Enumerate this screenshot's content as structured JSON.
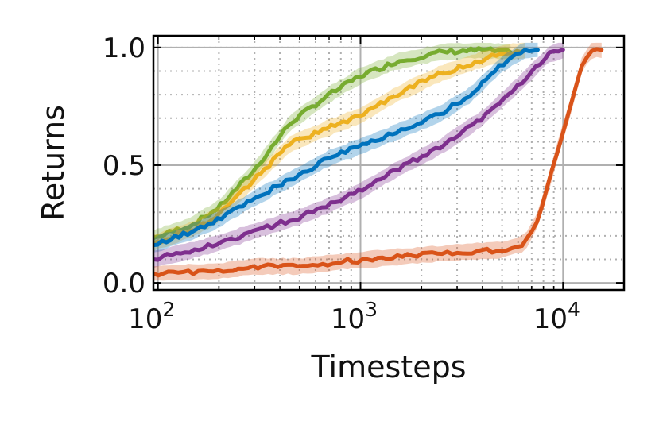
{
  "chart_data": {
    "type": "line",
    "title": "",
    "xlabel": "Timesteps",
    "ylabel": "Returns",
    "xscale": "log",
    "xlim": [
      95,
      20000
    ],
    "ylim": [
      -0.03,
      1.05
    ],
    "xticks": [
      {
        "value": 100,
        "base": "10",
        "exp": "2"
      },
      {
        "value": 1000,
        "base": "10",
        "exp": "3"
      },
      {
        "value": 10000,
        "base": "10",
        "exp": "4"
      }
    ],
    "yticks": [
      {
        "value": 0.0,
        "label": "0.0"
      },
      {
        "value": 0.5,
        "label": "0.5"
      },
      {
        "value": 1.0,
        "label": "1.0"
      }
    ],
    "grid": {
      "major": true,
      "minor": true,
      "minor_style": "dotted"
    },
    "legend": "none",
    "series": [
      {
        "color": "#77AC30",
        "values": [
          [
            95,
            0.19
          ],
          [
            150,
            0.25
          ],
          [
            200,
            0.32
          ],
          [
            300,
            0.48
          ],
          [
            450,
            0.68
          ],
          [
            700,
            0.8
          ],
          [
            1000,
            0.88
          ],
          [
            1500,
            0.94
          ],
          [
            2500,
            0.98
          ],
          [
            4000,
            0.99
          ],
          [
            5500,
            0.98
          ]
        ]
      },
      {
        "color": "#EDB120",
        "values": [
          [
            95,
            0.17
          ],
          [
            150,
            0.23
          ],
          [
            200,
            0.29
          ],
          [
            300,
            0.44
          ],
          [
            450,
            0.59
          ],
          [
            700,
            0.66
          ],
          [
            1000,
            0.71
          ],
          [
            1500,
            0.8
          ],
          [
            2500,
            0.89
          ],
          [
            4000,
            0.95
          ],
          [
            5500,
            0.98
          ],
          [
            6500,
            0.99
          ]
        ]
      },
      {
        "color": "#0072BD",
        "values": [
          [
            95,
            0.16
          ],
          [
            150,
            0.22
          ],
          [
            200,
            0.27
          ],
          [
            300,
            0.36
          ],
          [
            450,
            0.44
          ],
          [
            700,
            0.53
          ],
          [
            1000,
            0.58
          ],
          [
            1500,
            0.64
          ],
          [
            2500,
            0.72
          ],
          [
            3500,
            0.8
          ],
          [
            5000,
            0.93
          ],
          [
            6500,
            0.99
          ],
          [
            7500,
            0.99
          ]
        ]
      },
      {
        "color": "#7E2F8E",
        "values": [
          [
            95,
            0.1
          ],
          [
            150,
            0.14
          ],
          [
            200,
            0.17
          ],
          [
            300,
            0.22
          ],
          [
            500,
            0.28
          ],
          [
            700,
            0.33
          ],
          [
            1000,
            0.39
          ],
          [
            1500,
            0.48
          ],
          [
            2500,
            0.58
          ],
          [
            4000,
            0.7
          ],
          [
            6000,
            0.84
          ],
          [
            8500,
            0.97
          ],
          [
            10000,
            0.99
          ]
        ]
      },
      {
        "color": "#D95319",
        "values": [
          [
            95,
            0.04
          ],
          [
            200,
            0.05
          ],
          [
            300,
            0.07
          ],
          [
            500,
            0.07
          ],
          [
            800,
            0.09
          ],
          [
            1500,
            0.11
          ],
          [
            3000,
            0.13
          ],
          [
            5000,
            0.14
          ],
          [
            6500,
            0.17
          ],
          [
            7500,
            0.27
          ],
          [
            8500,
            0.42
          ],
          [
            9500,
            0.58
          ],
          [
            11000,
            0.76
          ],
          [
            12500,
            0.94
          ],
          [
            14000,
            0.99
          ],
          [
            15500,
            0.99
          ]
        ]
      }
    ]
  }
}
